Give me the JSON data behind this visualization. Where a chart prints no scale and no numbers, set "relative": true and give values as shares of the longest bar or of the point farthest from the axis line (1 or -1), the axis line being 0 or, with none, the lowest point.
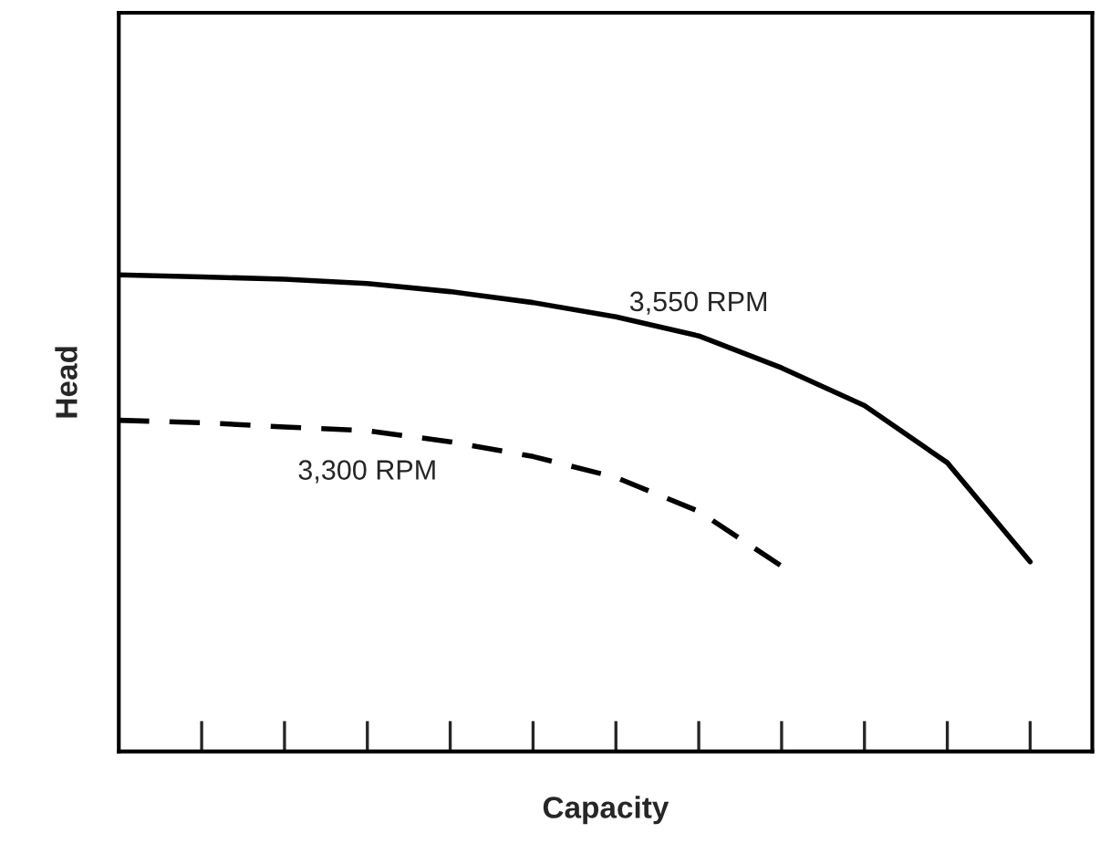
{
  "chart_data": {
    "type": "line",
    "relative": true,
    "xlabel": "Capacity",
    "ylabel": "Head",
    "tick_labels": false,
    "grid": false,
    "legend": false,
    "marker": "none",
    "categories": [
      null,
      null,
      null,
      null,
      null,
      null,
      null,
      null,
      null,
      null,
      null,
      null
    ],
    "series": [
      {
        "name": "3,550 RPM",
        "color": "#000000",
        "line_style": "solid",
        "values": [
          1.0,
          0.996,
          0.991,
          0.982,
          0.965,
          0.942,
          0.912,
          0.872,
          0.805,
          0.726,
          0.606,
          0.398
        ]
      },
      {
        "name": "3,300 RPM",
        "color": "#000000",
        "line_style": "dashed",
        "values": [
          0.695,
          0.69,
          0.681,
          0.673,
          0.65,
          0.619,
          0.575,
          0.504,
          0.389,
          null,
          null,
          null
        ]
      }
    ]
  }
}
